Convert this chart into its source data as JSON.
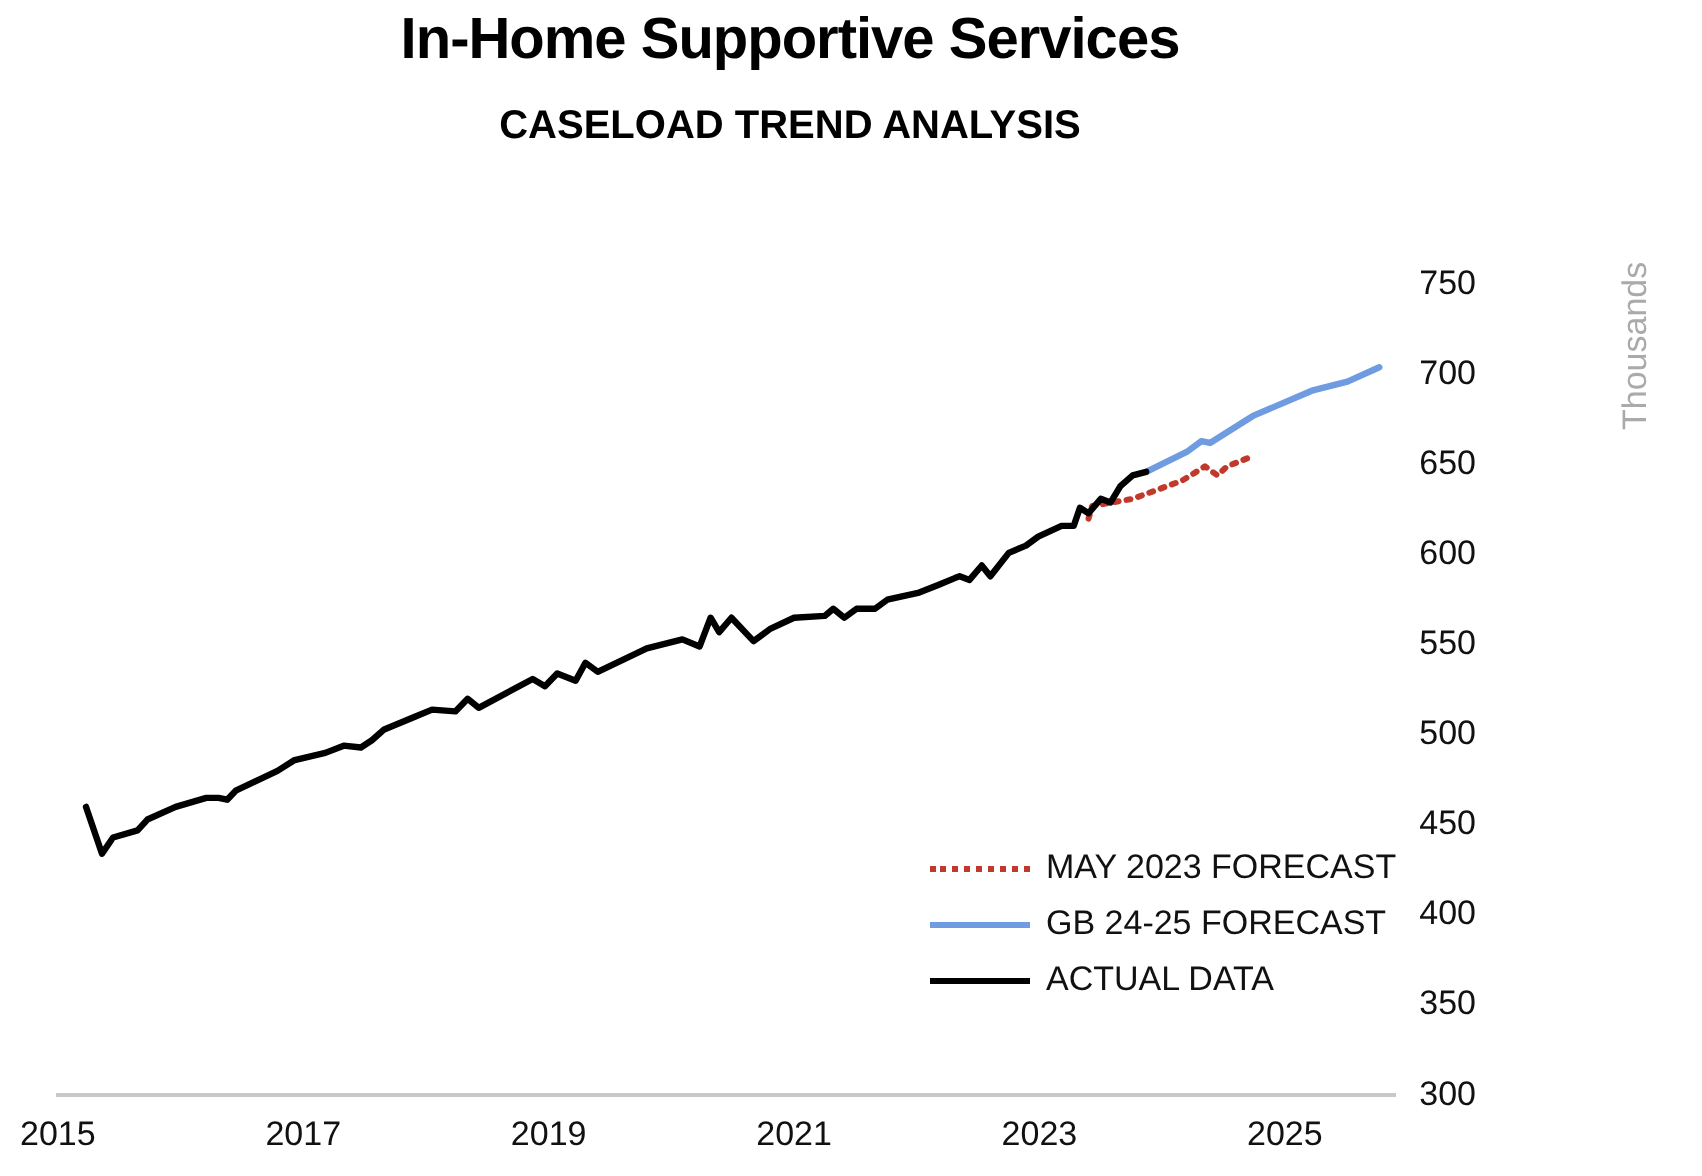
{
  "chart_data": {
    "type": "line",
    "title": "In-Home Supportive Services",
    "subtitle": "CASELOAD TREND ANALYSIS",
    "ylabel": "Thousands",
    "xlim": [
      2015,
      2025.9
    ],
    "xticks": [
      2015,
      2017,
      2019,
      2021,
      2023,
      2025
    ],
    "ylim": [
      300,
      750
    ],
    "yticks": [
      300,
      350,
      400,
      450,
      500,
      550,
      600,
      650,
      700,
      750
    ],
    "grid": false,
    "legend": "bottom right",
    "marker": "none",
    "series": [
      {
        "name": "MAY 2023 FORECAST",
        "color": "#c0392b",
        "line_style": "dotted",
        "x": [
          2023.4,
          2023.43,
          2023.76,
          2024.16,
          2024.35,
          2024.45,
          2024.53,
          2024.75
        ],
        "values": [
          620,
          627,
          631,
          641,
          649,
          644,
          649,
          655
        ]
      },
      {
        "name": "GB 24-25 FORECAST",
        "color": "#6f9be0",
        "line_style": "solid",
        "x": [
          2023.87,
          2024.2,
          2024.32,
          2024.39,
          2024.74,
          2025.22,
          2025.51,
          2025.77
        ],
        "values": [
          646,
          657,
          663,
          662,
          677,
          691,
          696,
          704
        ]
      },
      {
        "name": "ACTUAL DATA",
        "color": "#000000",
        "line_style": "solid",
        "x": [
          2015.23,
          2015.36,
          2015.45,
          2015.65,
          2015.73,
          2015.96,
          2016.21,
          2016.31,
          2016.38,
          2016.45,
          2016.79,
          2016.93,
          2017.18,
          2017.33,
          2017.47,
          2017.56,
          2017.66,
          2017.91,
          2018.05,
          2018.24,
          2018.34,
          2018.43,
          2018.87,
          2018.97,
          2019.07,
          2019.22,
          2019.3,
          2019.4,
          2019.8,
          2020.09,
          2020.23,
          2020.32,
          2020.39,
          2020.49,
          2020.67,
          2020.81,
          2021.0,
          2021.25,
          2021.32,
          2021.41,
          2021.51,
          2021.66,
          2021.76,
          2022.02,
          2022.17,
          2022.31,
          2022.35,
          2022.43,
          2022.53,
          2022.6,
          2022.75,
          2022.89,
          2022.99,
          2023.18,
          2023.28,
          2023.33,
          2023.4,
          2023.5,
          2023.58,
          2023.66,
          2023.76,
          2023.87
        ],
        "values": [
          460,
          434,
          443,
          447,
          453,
          460,
          465,
          465,
          464,
          469,
          480,
          486,
          490,
          494,
          493,
          497,
          503,
          510,
          514,
          513,
          520,
          515,
          531,
          527,
          534,
          530,
          540,
          535,
          548,
          553,
          549,
          565,
          557,
          565,
          552,
          559,
          565,
          566,
          570,
          565,
          570,
          570,
          575,
          579,
          583,
          587,
          588,
          586,
          594,
          588,
          601,
          605,
          610,
          616,
          616,
          626,
          623,
          631,
          629,
          638,
          644,
          646
        ]
      }
    ]
  }
}
